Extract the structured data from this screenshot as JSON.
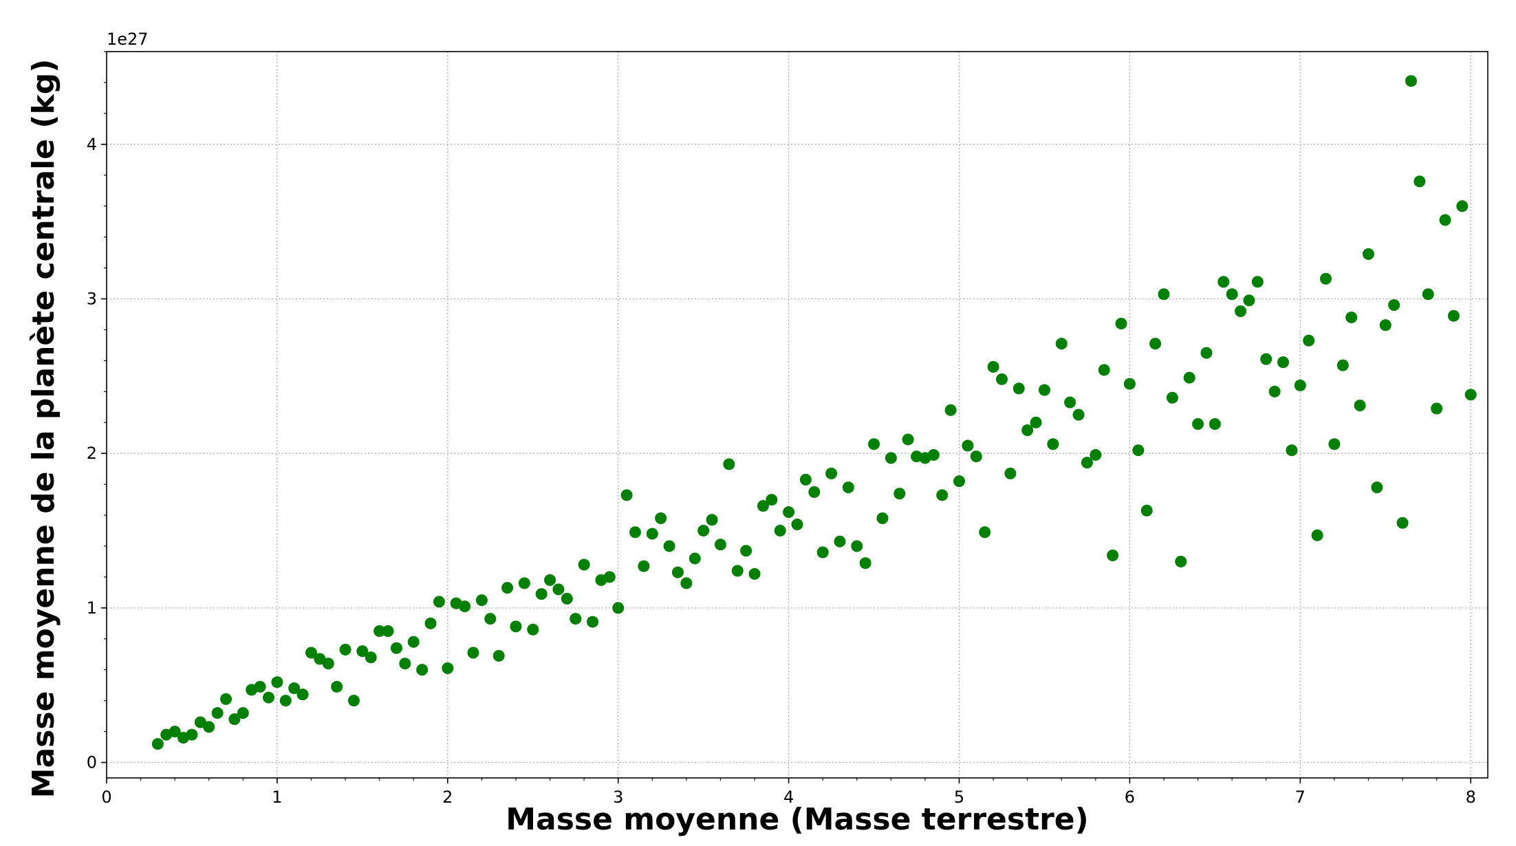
{
  "chart_data": {
    "type": "scatter",
    "xlabel": "Masse moyenne (Masse terrestre)",
    "ylabel": "Masse moyenne de la planète centrale (kg)",
    "y_offset_text": "1e27",
    "y_multiplier": 1e+27,
    "xlim": [
      0,
      8.1
    ],
    "ylim": [
      -0.1,
      4.6
    ],
    "xticks": [
      0,
      1,
      2,
      3,
      4,
      5,
      6,
      7,
      8
    ],
    "yticks": [
      0,
      1,
      2,
      3,
      4
    ],
    "grid": true,
    "marker_color": "#008000",
    "points": [
      [
        0.3,
        0.12
      ],
      [
        0.35,
        0.18
      ],
      [
        0.4,
        0.2
      ],
      [
        0.45,
        0.16
      ],
      [
        0.5,
        0.18
      ],
      [
        0.55,
        0.26
      ],
      [
        0.6,
        0.23
      ],
      [
        0.65,
        0.32
      ],
      [
        0.7,
        0.41
      ],
      [
        0.75,
        0.28
      ],
      [
        0.8,
        0.32
      ],
      [
        0.85,
        0.47
      ],
      [
        0.9,
        0.49
      ],
      [
        0.95,
        0.42
      ],
      [
        1.0,
        0.52
      ],
      [
        1.05,
        0.4
      ],
      [
        1.1,
        0.48
      ],
      [
        1.15,
        0.44
      ],
      [
        1.2,
        0.71
      ],
      [
        1.25,
        0.67
      ],
      [
        1.3,
        0.64
      ],
      [
        1.35,
        0.49
      ],
      [
        1.4,
        0.73
      ],
      [
        1.45,
        0.4
      ],
      [
        1.5,
        0.72
      ],
      [
        1.55,
        0.68
      ],
      [
        1.6,
        0.85
      ],
      [
        1.65,
        0.85
      ],
      [
        1.7,
        0.74
      ],
      [
        1.75,
        0.64
      ],
      [
        1.8,
        0.78
      ],
      [
        1.85,
        0.6
      ],
      [
        1.9,
        0.9
      ],
      [
        1.95,
        1.04
      ],
      [
        2.0,
        0.61
      ],
      [
        2.05,
        1.03
      ],
      [
        2.1,
        1.01
      ],
      [
        2.15,
        0.71
      ],
      [
        2.2,
        1.05
      ],
      [
        2.25,
        0.93
      ],
      [
        2.3,
        0.69
      ],
      [
        2.35,
        1.13
      ],
      [
        2.4,
        0.88
      ],
      [
        2.45,
        1.16
      ],
      [
        2.5,
        0.86
      ],
      [
        2.55,
        1.09
      ],
      [
        2.6,
        1.18
      ],
      [
        2.65,
        1.12
      ],
      [
        2.7,
        1.06
      ],
      [
        2.75,
        0.93
      ],
      [
        2.8,
        1.28
      ],
      [
        2.85,
        0.91
      ],
      [
        2.9,
        1.18
      ],
      [
        2.95,
        1.2
      ],
      [
        3.0,
        1.0
      ],
      [
        3.05,
        1.73
      ],
      [
        3.1,
        1.49
      ],
      [
        3.15,
        1.27
      ],
      [
        3.2,
        1.48
      ],
      [
        3.25,
        1.58
      ],
      [
        3.3,
        1.4
      ],
      [
        3.35,
        1.23
      ],
      [
        3.4,
        1.16
      ],
      [
        3.45,
        1.32
      ],
      [
        3.5,
        1.5
      ],
      [
        3.55,
        1.57
      ],
      [
        3.6,
        1.41
      ],
      [
        3.65,
        1.93
      ],
      [
        3.7,
        1.24
      ],
      [
        3.75,
        1.37
      ],
      [
        3.8,
        1.22
      ],
      [
        3.85,
        1.66
      ],
      [
        3.9,
        1.7
      ],
      [
        3.95,
        1.5
      ],
      [
        4.0,
        1.62
      ],
      [
        4.05,
        1.54
      ],
      [
        4.1,
        1.83
      ],
      [
        4.15,
        1.75
      ],
      [
        4.2,
        1.36
      ],
      [
        4.25,
        1.87
      ],
      [
        4.3,
        1.43
      ],
      [
        4.35,
        1.78
      ],
      [
        4.4,
        1.4
      ],
      [
        4.45,
        1.29
      ],
      [
        4.5,
        2.06
      ],
      [
        4.55,
        1.58
      ],
      [
        4.6,
        1.97
      ],
      [
        4.65,
        1.74
      ],
      [
        4.7,
        2.09
      ],
      [
        4.75,
        1.98
      ],
      [
        4.8,
        1.97
      ],
      [
        4.85,
        1.99
      ],
      [
        4.9,
        1.73
      ],
      [
        4.95,
        2.28
      ],
      [
        5.0,
        1.82
      ],
      [
        5.05,
        2.05
      ],
      [
        5.1,
        1.98
      ],
      [
        5.15,
        1.49
      ],
      [
        5.2,
        2.56
      ],
      [
        5.25,
        2.48
      ],
      [
        5.3,
        1.87
      ],
      [
        5.35,
        2.42
      ],
      [
        5.4,
        2.15
      ],
      [
        5.45,
        2.2
      ],
      [
        5.5,
        2.41
      ],
      [
        5.55,
        2.06
      ],
      [
        5.6,
        2.71
      ],
      [
        5.65,
        2.33
      ],
      [
        5.7,
        2.25
      ],
      [
        5.75,
        1.94
      ],
      [
        5.8,
        1.99
      ],
      [
        5.85,
        2.54
      ],
      [
        5.9,
        1.34
      ],
      [
        5.95,
        2.84
      ],
      [
        6.0,
        2.45
      ],
      [
        6.05,
        2.02
      ],
      [
        6.1,
        1.63
      ],
      [
        6.15,
        2.71
      ],
      [
        6.2,
        3.03
      ],
      [
        6.25,
        2.36
      ],
      [
        6.3,
        1.3
      ],
      [
        6.35,
        2.49
      ],
      [
        6.4,
        2.19
      ],
      [
        6.45,
        2.65
      ],
      [
        6.5,
        2.19
      ],
      [
        6.55,
        3.11
      ],
      [
        6.6,
        3.03
      ],
      [
        6.65,
        2.92
      ],
      [
        6.7,
        2.99
      ],
      [
        6.75,
        3.11
      ],
      [
        6.8,
        2.61
      ],
      [
        6.85,
        2.4
      ],
      [
        6.9,
        2.59
      ],
      [
        6.95,
        2.02
      ],
      [
        7.0,
        2.44
      ],
      [
        7.05,
        2.73
      ],
      [
        7.1,
        1.47
      ],
      [
        7.15,
        3.13
      ],
      [
        7.2,
        2.06
      ],
      [
        7.25,
        2.57
      ],
      [
        7.3,
        2.88
      ],
      [
        7.35,
        2.31
      ],
      [
        7.4,
        3.29
      ],
      [
        7.45,
        1.78
      ],
      [
        7.5,
        2.83
      ],
      [
        7.55,
        2.96
      ],
      [
        7.6,
        1.55
      ],
      [
        7.65,
        4.41
      ],
      [
        7.7,
        3.76
      ],
      [
        7.75,
        3.03
      ],
      [
        7.8,
        2.29
      ],
      [
        7.85,
        3.51
      ],
      [
        7.9,
        2.89
      ],
      [
        7.95,
        3.6
      ],
      [
        8.0,
        2.38
      ]
    ]
  }
}
